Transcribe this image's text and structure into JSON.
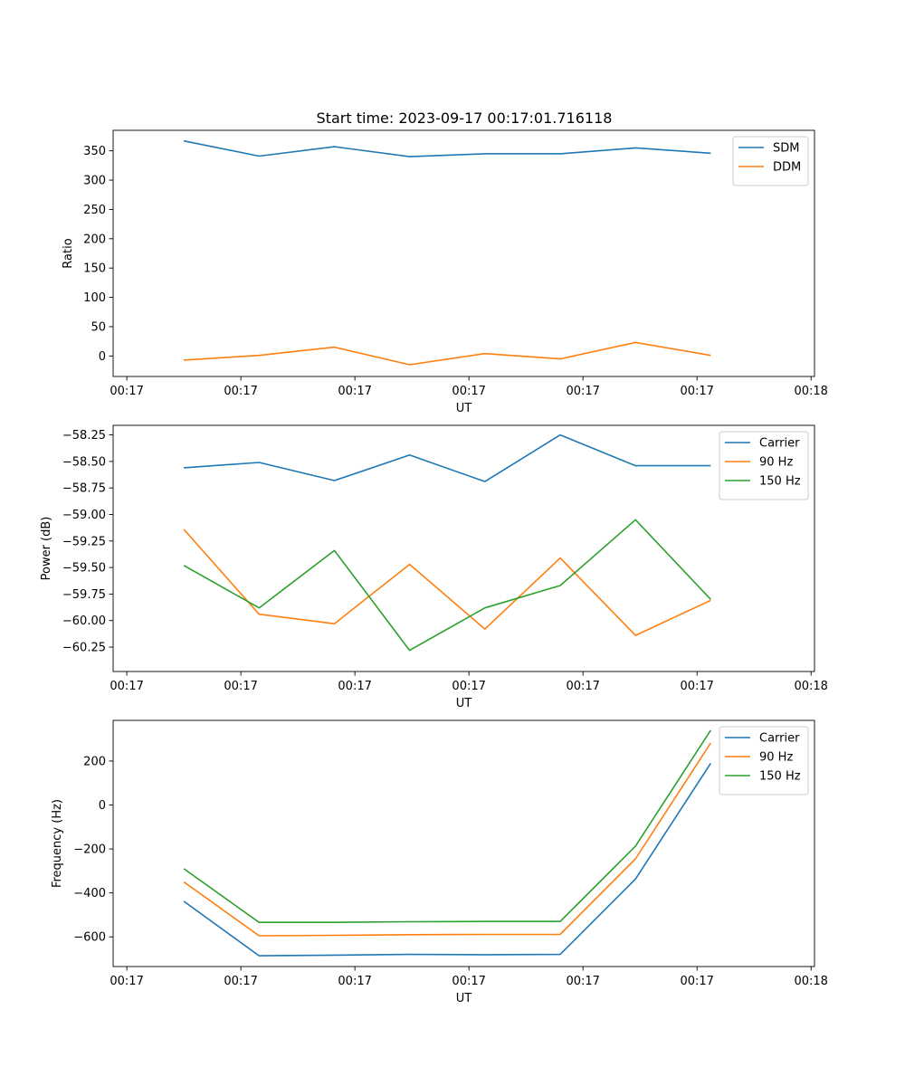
{
  "figure_title": "Start time: 2023-09-17 00:17:01.716118",
  "chart_data": [
    {
      "type": "line",
      "title": "Start time: 2023-09-17 00:17:01.716118",
      "xlabel": "UT",
      "ylabel": "Ratio",
      "grid": false,
      "legend": "top-right",
      "xlim": [
        0,
        6.15
      ],
      "xticks": [
        0.12,
        1.12,
        2.12,
        3.12,
        4.12,
        5.12,
        6.12
      ],
      "xtick_labels": [
        "00:17",
        "00:17",
        "00:17",
        "00:17",
        "00:17",
        "00:17",
        "00:18"
      ],
      "ylim": [
        -35,
        385
      ],
      "yticks": [
        0,
        50,
        100,
        150,
        200,
        250,
        300,
        350
      ],
      "ytick_labels": [
        "0",
        "50",
        "100",
        "150",
        "200",
        "250",
        "300",
        "350"
      ],
      "x": [
        0.62,
        1.28,
        1.94,
        2.6,
        3.26,
        3.92,
        4.58,
        5.24
      ],
      "series": [
        {
          "name": "SDM",
          "color": "#1f77b4",
          "values": [
            367,
            341,
            357,
            340,
            345,
            345,
            355,
            346
          ]
        },
        {
          "name": "DDM",
          "color": "#ff7f0e",
          "values": [
            -7,
            1,
            15,
            -15,
            4,
            -5,
            23,
            1
          ]
        }
      ]
    },
    {
      "type": "line",
      "xlabel": "UT",
      "ylabel": "Power (dB)",
      "grid": false,
      "legend": "top-right",
      "xlim": [
        0,
        6.15
      ],
      "xticks": [
        0.12,
        1.12,
        2.12,
        3.12,
        4.12,
        5.12,
        6.12
      ],
      "xtick_labels": [
        "00:17",
        "00:17",
        "00:17",
        "00:17",
        "00:17",
        "00:17",
        "00:18"
      ],
      "ylim": [
        -60.48,
        -58.16
      ],
      "yticks": [
        -60.25,
        -60.0,
        -59.75,
        -59.5,
        -59.25,
        -59.0,
        -58.75,
        -58.5,
        -58.25
      ],
      "ytick_labels": [
        "−60.25",
        "−60.00",
        "−59.75",
        "−59.50",
        "−59.25",
        "−59.00",
        "−58.75",
        "−58.50",
        "−58.25"
      ],
      "x": [
        0.62,
        1.28,
        1.94,
        2.6,
        3.26,
        3.92,
        4.58,
        5.24
      ],
      "series": [
        {
          "name": "Carrier",
          "color": "#1f77b4",
          "values": [
            -58.56,
            -58.51,
            -58.68,
            -58.44,
            -58.69,
            -58.25,
            -58.54,
            -58.54
          ]
        },
        {
          "name": "90 Hz",
          "color": "#ff7f0e",
          "values": [
            -59.14,
            -59.94,
            -60.03,
            -59.47,
            -60.08,
            -59.41,
            -60.14,
            -59.81
          ]
        },
        {
          "name": "150 Hz",
          "color": "#2ca02c",
          "values": [
            -59.48,
            -59.88,
            -59.34,
            -60.28,
            -59.88,
            -59.67,
            -59.05,
            -59.8
          ]
        }
      ]
    },
    {
      "type": "line",
      "xlabel": "UT",
      "ylabel": "Frequency (Hz)",
      "grid": false,
      "legend": "top-right",
      "xlim": [
        0,
        6.15
      ],
      "xticks": [
        0.12,
        1.12,
        2.12,
        3.12,
        4.12,
        5.12,
        6.12
      ],
      "xtick_labels": [
        "00:17",
        "00:17",
        "00:17",
        "00:17",
        "00:17",
        "00:17",
        "00:18"
      ],
      "ylim": [
        -735,
        385
      ],
      "yticks": [
        -600,
        -400,
        -200,
        0,
        200
      ],
      "ytick_labels": [
        "−600",
        "−400",
        "−200",
        "0",
        "200"
      ],
      "x": [
        0.62,
        1.28,
        1.94,
        2.6,
        3.26,
        3.92,
        4.58,
        5.24
      ],
      "series": [
        {
          "name": "Carrier",
          "color": "#1f77b4",
          "values": [
            -438,
            -686,
            -683,
            -680,
            -681,
            -680,
            -337,
            190
          ]
        },
        {
          "name": "90 Hz",
          "color": "#ff7f0e",
          "values": [
            -350,
            -595,
            -593,
            -590,
            -589,
            -589,
            -245,
            282
          ]
        },
        {
          "name": "150 Hz",
          "color": "#2ca02c",
          "values": [
            -290,
            -534,
            -534,
            -531,
            -530,
            -530,
            -187,
            340
          ]
        }
      ]
    }
  ]
}
